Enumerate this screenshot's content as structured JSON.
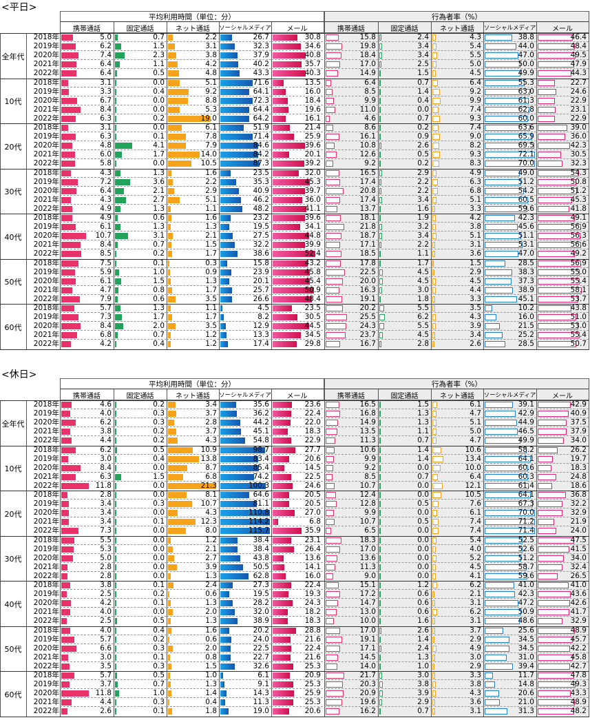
{
  "colors": {
    "mobile": "#e8336a",
    "fixed": "#21a35a",
    "net": "#f4a31a",
    "social": "#1f7fd4",
    "mail": "#e02672",
    "shade": "#ececec"
  },
  "header": {
    "group_time": "平均利用時間（単位：分）",
    "group_rate": "行為者率（%）",
    "cols": [
      "携帯通話",
      "固定通話",
      "ネット通話",
      "ソーシャルメディア",
      "メール"
    ]
  },
  "chart_data": [
    {
      "type": "table",
      "title": "<平日>",
      "years": [
        "2018年",
        "2019年",
        "2020年",
        "2021年",
        "2022年"
      ],
      "ages": [
        "全年代",
        "10代",
        "20代",
        "30代",
        "40代",
        "50代",
        "60代"
      ],
      "columns": [
        "携帯通話",
        "固定通話",
        "ネット通話",
        "ソーシャルメディア",
        "メール"
      ],
      "time": [
        [
          [
            5.0,
            0.7,
            2.2,
            26.7,
            30.8
          ],
          [
            6.2,
            1.5,
            3.1,
            32.3,
            34.6
          ],
          [
            7.4,
            2.3,
            3.8,
            37.9,
            40.8
          ],
          [
            6.4,
            1.1,
            4.2,
            40.2,
            35.7
          ],
          [
            6.4,
            0.5,
            4.8,
            43.3,
            40.3
          ]
        ],
        [
          [
            3.1,
            0.0,
            5.1,
            71.6,
            13.5
          ],
          [
            3.3,
            0.4,
            9.2,
            64.1,
            16.0
          ],
          [
            6.7,
            0.0,
            8.8,
            72.3,
            18.4
          ],
          [
            8.4,
            0.0,
            5.3,
            64.4,
            19.6
          ],
          [
            6.3,
            0.2,
            19.0,
            64.2,
            16.1
          ]
        ],
        [
          [
            3.1,
            0.0,
            6.1,
            51.9,
            21.4
          ],
          [
            6.3,
            0.1,
            7.8,
            71.4,
            25.9
          ],
          [
            4.8,
            4.1,
            7.9,
            84.6,
            39.6
          ],
          [
            6.0,
            1.7,
            14.0,
            84.2,
            20.1
          ],
          [
            5.8,
            0.0,
            10.5,
            87.3,
            39.2
          ]
        ],
        [
          [
            4.3,
            1.3,
            1.6,
            23.5,
            32.0
          ],
          [
            7.2,
            3.6,
            2.2,
            35.3,
            45.3
          ],
          [
            6.4,
            2.1,
            2.9,
            40.9,
            39.7
          ],
          [
            4.3,
            2.7,
            5.1,
            46.2,
            36.0
          ],
          [
            4.9,
            1.3,
            1.1,
            48.2,
            41.1
          ]
        ],
        [
          [
            4.9,
            0.6,
            1.6,
            23.2,
            39.6
          ],
          [
            6.1,
            1.3,
            1.3,
            19.5,
            34.1
          ],
          [
            10.7,
            3.1,
            2.1,
            27.5,
            44.8
          ],
          [
            8.4,
            0.7,
            1.5,
            32.2,
            39.9
          ],
          [
            8.5,
            0.2,
            1.7,
            38.6,
            52.4
          ]
        ],
        [
          [
            7.5,
            0.1,
            0.3,
            15.8,
            43.2
          ],
          [
            5.9,
            1.0,
            0.9,
            23.9,
            45.8
          ],
          [
            6.1,
            1.5,
            1.3,
            20.1,
            45.4
          ],
          [
            4.7,
            0.8,
            1.7,
            25.7,
            50.9
          ],
          [
            7.9,
            0.6,
            3.5,
            26.6,
            48.4
          ]
        ],
        [
          [
            5.7,
            1.3,
            1.1,
            4.5,
            23.5
          ],
          [
            7.3,
            1.7,
            1.7,
            8.2,
            30.5
          ],
          [
            8.4,
            2.0,
            3.5,
            12.9,
            44.5
          ],
          [
            6.8,
            0.7,
            1.2,
            13.3,
            34.5
          ],
          [
            4.2,
            0.4,
            1.2,
            17.4,
            29.8
          ]
        ]
      ],
      "rate": [
        [
          [
            15.8,
            2.4,
            4.3,
            38.8,
            46.4
          ],
          [
            19.8,
            3.4,
            5.4,
            44.0,
            48.4
          ],
          [
            18.4,
            3.4,
            5.5,
            47.0,
            49.5
          ],
          [
            17.0,
            2.5,
            5.0,
            50.0,
            47.9
          ],
          [
            14.9,
            1.5,
            4.5,
            49.9,
            44.3
          ]
        ],
        [
          [
            6.4,
            0.7,
            6.4,
            55.3,
            22.7
          ],
          [
            8.5,
            1.4,
            9.2,
            63.0,
            24.6
          ],
          [
            9.9,
            0.4,
            9.9,
            61.3,
            22.9
          ],
          [
            11.0,
            0.0,
            7.4,
            62.8,
            23.1
          ],
          [
            4.6,
            0.7,
            9.3,
            60.0,
            22.9
          ]
        ],
        [
          [
            8.6,
            0.2,
            7.4,
            63.6,
            39.0
          ],
          [
            16.1,
            0.9,
            9.0,
            65.9,
            36.0
          ],
          [
            10.8,
            2.6,
            8.2,
            69.5,
            42.3
          ],
          [
            12.6,
            0.5,
            9.3,
            72.1,
            30.5
          ],
          [
            9.2,
            0.2,
            8.3,
            70.0,
            32.3
          ]
        ],
        [
          [
            16.5,
            2.9,
            4.9,
            49.0,
            54.3
          ],
          [
            17.4,
            2.2,
            6.3,
            51.2,
            50.8
          ],
          [
            20.8,
            2.2,
            6.8,
            54.2,
            51.2
          ],
          [
            17.4,
            3.4,
            5.1,
            60.5,
            45.3
          ],
          [
            13.7,
            1.6,
            3.3,
            59.6,
            41.8
          ]
        ],
        [
          [
            18.1,
            1.9,
            4.2,
            42.3,
            49.1
          ],
          [
            21.8,
            3.2,
            3.8,
            45.6,
            56.9
          ],
          [
            18.7,
            3.4,
            5.1,
            51.1,
            56.3
          ],
          [
            17.1,
            2.2,
            3.1,
            53.1,
            56.6
          ],
          [
            18.5,
            1.1,
            3.6,
            47.0,
            49.2
          ]
        ],
        [
          [
            17.8,
            1.7,
            1.5,
            28.5,
            56.9
          ],
          [
            22.5,
            4.5,
            2.9,
            38.3,
            55.0
          ],
          [
            20.0,
            4.5,
            4.5,
            37.3,
            55.4
          ],
          [
            16.3,
            3.0,
            4.4,
            38.9,
            58.1
          ],
          [
            19.1,
            1.8,
            3.3,
            45.1,
            53.7
          ]
        ],
        [
          [
            20.2,
            5.5,
            3.5,
            10.2,
            43.8
          ],
          [
            25.5,
            6.2,
            4.3,
            16.0,
            51.0
          ],
          [
            24.3,
            5.5,
            3.9,
            21.5,
            53.0
          ],
          [
            23.7,
            4.5,
            3.4,
            25.2,
            55.4
          ],
          [
            16.7,
            2.8,
            2.6,
            28.5,
            50.7
          ]
        ]
      ]
    },
    {
      "type": "table",
      "title": "<休日>",
      "years": [
        "2018年",
        "2019年",
        "2020年",
        "2021年",
        "2022年"
      ],
      "ages": [
        "全年代",
        "10代",
        "20代",
        "30代",
        "40代",
        "50代",
        "60代"
      ],
      "columns": [
        "携帯通話",
        "固定通話",
        "ネット通話",
        "ソーシャルメディア",
        "メール"
      ],
      "time": [
        [
          [
            4.6,
            0.2,
            3.4,
            35.6,
            23.6
          ],
          [
            4.0,
            0.3,
            3.7,
            36.2,
            22.4
          ],
          [
            6.2,
            0.3,
            2.8,
            44.2,
            22.0
          ],
          [
            3.8,
            0.2,
            3.7,
            45.1,
            18.3
          ],
          [
            4.4,
            0.2,
            4.3,
            54.8,
            22.9
          ]
        ],
        [
          [
            6.2,
            0.5,
            10.9,
            98.7,
            27.7
          ],
          [
            3.0,
            0.4,
            13.8,
            83.4,
            20.6
          ],
          [
            8.4,
            0.0,
            8.7,
            85.4,
            14.5
          ],
          [
            6.3,
            1.5,
            6.8,
            74.2,
            22.5
          ],
          [
            11.8,
            0.0,
            21.3,
            100.3,
            24.6
          ]
        ],
        [
          [
            2.8,
            0.0,
            8.1,
            64.6,
            20.5
          ],
          [
            3.4,
            0.3,
            10.7,
            81.1,
            20.5
          ],
          [
            3.4,
            0.0,
            4.3,
            110.8,
            27.0
          ],
          [
            3.4,
            0.1,
            12.3,
            114.2,
            6.8
          ],
          [
            7.3,
            0.0,
            8.0,
            115.7,
            35.9
          ]
        ],
        [
          [
            5.5,
            0.0,
            1.2,
            38.4,
            23.1
          ],
          [
            5.3,
            0.0,
            2.1,
            38.4,
            26.4
          ],
          [
            5.0,
            0.0,
            2.7,
            43.8,
            13.6
          ],
          [
            2.8,
            0.0,
            3.9,
            50.5,
            14.1
          ],
          [
            2.8,
            0.0,
            1.3,
            62.8,
            16.0
          ]
        ],
        [
          [
            3.8,
            0.1,
            2.4,
            27.3,
            22.4
          ],
          [
            2.5,
            0.2,
            0.6,
            19.5,
            19.3
          ],
          [
            4.2,
            0.1,
            1.3,
            28.2,
            24.3
          ],
          [
            4.0,
            0.0,
            2.0,
            32.0,
            18.2
          ],
          [
            2.5,
            0.5,
            1.3,
            38.9,
            18.3
          ]
        ],
        [
          [
            4.0,
            0.4,
            1.6,
            20.2,
            28.8
          ],
          [
            5.7,
            0.2,
            0.6,
            24.0,
            21.6
          ],
          [
            6.6,
            0.3,
            2.0,
            22.5,
            22.4
          ],
          [
            3.0,
            0.1,
            0.8,
            22.7,
            21.6
          ],
          [
            3.5,
            0.3,
            1.5,
            32.6,
            25.3
          ]
        ],
        [
          [
            5.7,
            0.5,
            1.0,
            6.1,
            20.9
          ],
          [
            3.7,
            0.7,
            1.3,
            9.1,
            25.3
          ],
          [
            11.8,
            1.0,
            1.4,
            14.3,
            25.9
          ],
          [
            4.4,
            0.3,
            0.4,
            11.3,
            25.3
          ],
          [
            2.6,
            0.1,
            1.8,
            19.0,
            20.6
          ]
        ]
      ],
      "rate": [
        [
          [
            16.5,
            1.5,
            6.1,
            39.1,
            42.9
          ],
          [
            16.8,
            1.3,
            4.7,
            42.9,
            40.9
          ],
          [
            14.9,
            1.3,
            5.1,
            44.9,
            37.5
          ],
          [
            13.5,
            1.1,
            5.0,
            46.5,
            37.9
          ],
          [
            11.3,
            0.7,
            4.7,
            49.9,
            34.0
          ]
        ],
        [
          [
            10.6,
            1.4,
            10.6,
            58.2,
            26.2
          ],
          [
            9.9,
            1.4,
            13.4,
            64.1,
            19.7
          ],
          [
            9.2,
            0.0,
            10.0,
            60.6,
            18.3
          ],
          [
            8.5,
            0.7,
            6.4,
            60.3,
            24.8
          ],
          [
            10.7,
            0.0,
            12.1,
            61.4,
            18.6
          ]
        ],
        [
          [
            12.4,
            0.0,
            10.5,
            64.1,
            36.8
          ],
          [
            12.8,
            0.5,
            7.6,
            67.3,
            32.2
          ],
          [
            9.9,
            0.0,
            6.1,
            70.0,
            32.9
          ],
          [
            10.7,
            0.5,
            7.4,
            71.2,
            21.9
          ],
          [
            6.5,
            0.0,
            7.4,
            71.4,
            24.0
          ]
        ],
        [
          [
            18.3,
            0.0,
            5.4,
            52.5,
            47.5
          ],
          [
            17.0,
            0.0,
            4.0,
            52.6,
            41.5
          ],
          [
            13.6,
            0.0,
            5.2,
            51.2,
            34.0
          ],
          [
            11.3,
            0.0,
            4.5,
            58.7,
            32.4
          ],
          [
            9.0,
            0.0,
            4.1,
            59.6,
            26.5
          ]
        ],
        [
          [
            15.1,
            1.2,
            6.2,
            41.0,
            41.0
          ],
          [
            17.2,
            0.6,
            2.1,
            42.3,
            43.6
          ],
          [
            14.7,
            0.6,
            3.1,
            47.2,
            42.6
          ],
          [
            13.0,
            0.6,
            6.2,
            50.9,
            41.7
          ],
          [
            10.0,
            1.6,
            3.1,
            48.6,
            32.9
          ]
        ],
        [
          [
            17.0,
            2.6,
            3.7,
            25.6,
            48.9
          ],
          [
            19.1,
            1.4,
            2.9,
            34.5,
            45.7
          ],
          [
            17.1,
            2.4,
            4.9,
            34.5,
            42.2
          ],
          [
            14.5,
            1.3,
            3.0,
            31.0,
            45.8
          ],
          [
            14.0,
            1.0,
            2.9,
            39.4,
            42.7
          ]
        ],
        [
          [
            21.7,
            3.0,
            3.3,
            11.7,
            47.8
          ],
          [
            20.3,
            3.8,
            3.8,
            14.8,
            49.3
          ],
          [
            20.9,
            3.9,
            4.3,
            20.6,
            43.3
          ],
          [
            19.6,
            2.9,
            3.6,
            21.0,
            48.9
          ],
          [
            16.2,
            0.7,
            3.1,
            31.3,
            48.2
          ]
        ]
      ]
    }
  ]
}
